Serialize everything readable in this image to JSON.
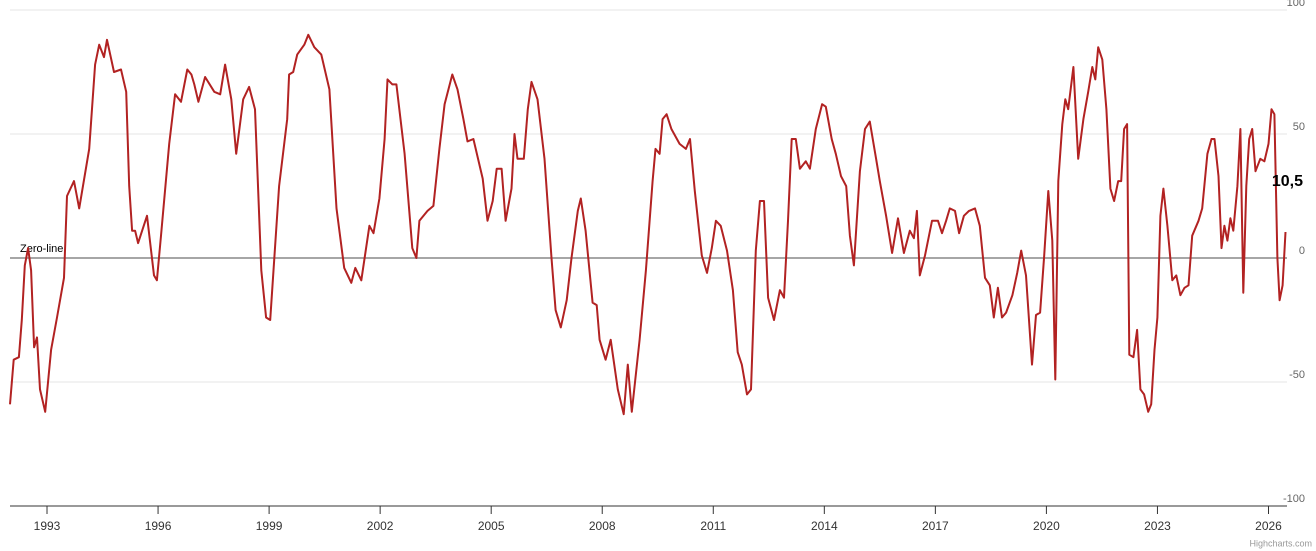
{
  "chart_data": {
    "type": "line",
    "color": "#b22222",
    "x": [
      1992.0,
      1992.1,
      1992.24,
      1992.32,
      1992.4,
      1992.49,
      1992.57,
      1992.65,
      1992.73,
      1992.81,
      1992.95,
      1993.11,
      1993.27,
      1993.46,
      1993.54,
      1993.73,
      1993.87,
      1994.14,
      1994.3,
      1994.41,
      1994.54,
      1994.62,
      1994.81,
      1995.0,
      1995.14,
      1995.22,
      1995.3,
      1995.38,
      1995.46,
      1995.7,
      1995.89,
      1995.97,
      1996.08,
      1996.3,
      1996.46,
      1996.62,
      1996.79,
      1996.9,
      1996.98,
      1997.09,
      1997.27,
      1997.52,
      1997.68,
      1997.81,
      1997.98,
      1998.11,
      1998.3,
      1998.46,
      1998.62,
      1998.79,
      1998.92,
      1999.03,
      1999.27,
      1999.49,
      1999.54,
      1999.65,
      1999.76,
      1999.95,
      2000.06,
      2000.22,
      2000.41,
      2000.63,
      2000.82,
      2001.03,
      2001.22,
      2001.33,
      2001.49,
      2001.71,
      2001.82,
      2001.98,
      2002.12,
      2002.2,
      2002.33,
      2002.44,
      2002.66,
      2002.87,
      2002.98,
      2003.06,
      2003.28,
      2003.44,
      2003.6,
      2003.74,
      2003.95,
      2004.09,
      2004.25,
      2004.36,
      2004.52,
      2004.77,
      2004.9,
      2005.04,
      2005.15,
      2005.28,
      2005.39,
      2005.55,
      2005.63,
      2005.71,
      2005.88,
      2005.99,
      2006.09,
      2006.25,
      2006.44,
      2006.63,
      2006.74,
      2006.88,
      2007.04,
      2007.17,
      2007.34,
      2007.42,
      2007.55,
      2007.74,
      2007.85,
      2007.93,
      2008.09,
      2008.23,
      2008.42,
      2008.58,
      2008.69,
      2008.8,
      2009.01,
      2009.18,
      2009.36,
      2009.44,
      2009.55,
      2009.63,
      2009.74,
      2009.87,
      2010.09,
      2010.26,
      2010.37,
      2010.5,
      2010.69,
      2010.83,
      2010.96,
      2011.07,
      2011.2,
      2011.37,
      2011.53,
      2011.66,
      2011.77,
      2011.91,
      2012.02,
      2012.15,
      2012.26,
      2012.37,
      2012.48,
      2012.64,
      2012.8,
      2012.91,
      2013.02,
      2013.12,
      2013.23,
      2013.34,
      2013.5,
      2013.61,
      2013.77,
      2013.94,
      2014.04,
      2014.2,
      2014.31,
      2014.45,
      2014.59,
      2014.69,
      2014.8,
      2014.96,
      2015.1,
      2015.23,
      2015.4,
      2015.5,
      2015.67,
      2015.83,
      2015.99,
      2016.15,
      2016.31,
      2016.42,
      2016.5,
      2016.58,
      2016.72,
      2016.91,
      2017.07,
      2017.18,
      2017.29,
      2017.39,
      2017.53,
      2017.64,
      2017.77,
      2017.91,
      2018.07,
      2018.2,
      2018.34,
      2018.47,
      2018.58,
      2018.69,
      2018.8,
      2018.91,
      2019.08,
      2019.21,
      2019.32,
      2019.45,
      2019.61,
      2019.72,
      2019.83,
      2019.94,
      2020.05,
      2020.16,
      2020.24,
      2020.32,
      2020.43,
      2020.51,
      2020.59,
      2020.73,
      2020.86,
      2021.0,
      2021.13,
      2021.24,
      2021.32,
      2021.4,
      2021.51,
      2021.62,
      2021.73,
      2021.83,
      2021.94,
      2022.02,
      2022.1,
      2022.18,
      2022.24,
      2022.35,
      2022.45,
      2022.54,
      2022.64,
      2022.75,
      2022.83,
      2022.92,
      2023.0,
      2023.08,
      2023.16,
      2023.27,
      2023.4,
      2023.51,
      2023.62,
      2023.73,
      2023.84,
      2023.94,
      2024.11,
      2024.21,
      2024.35,
      2024.46,
      2024.54,
      2024.65,
      2024.73,
      2024.81,
      2024.89,
      2024.97,
      2025.05,
      2025.16,
      2025.24,
      2025.32,
      2025.4,
      2025.48,
      2025.56,
      2025.65,
      2025.78,
      2025.89,
      2026.0,
      2026.08,
      2026.16,
      2026.24,
      2026.3,
      2026.38,
      2026.46
    ],
    "values": [
      -59,
      -41,
      -40,
      -25,
      -3,
      4,
      -5,
      -36,
      -32,
      -53,
      -62,
      -37,
      -24,
      -8,
      25,
      31,
      20,
      44,
      78,
      86,
      81,
      88,
      75,
      76,
      67,
      29,
      11,
      11,
      6,
      17,
      -7,
      -9,
      9,
      46,
      66,
      63,
      76,
      74,
      70,
      63,
      73,
      67,
      66,
      78,
      64,
      42,
      64,
      69,
      60,
      -5,
      -24,
      -25,
      29,
      56,
      74,
      75,
      82,
      86,
      90,
      85,
      82,
      68,
      20,
      -4,
      -10,
      -4,
      -9,
      13,
      10,
      24,
      48,
      72,
      70,
      70,
      42,
      4,
      0,
      15,
      19,
      21,
      44,
      62,
      74,
      68,
      56,
      47,
      48,
      32,
      15,
      23,
      36,
      36,
      15,
      28,
      50,
      40,
      40,
      60,
      71,
      64,
      40,
      0,
      -21,
      -28,
      -17,
      0,
      19,
      24,
      11,
      -18,
      -19,
      -33,
      -41,
      -33,
      -53,
      -63,
      -43,
      -62,
      -33,
      -5,
      31,
      44,
      42,
      56,
      58,
      52,
      46,
      44,
      48,
      27,
      1,
      -6,
      4,
      15,
      13,
      3,
      -13,
      -38,
      -43,
      -55,
      -53,
      3,
      23,
      23,
      -16,
      -25,
      -13,
      -16,
      15,
      48,
      48,
      36,
      39,
      36,
      52,
      62,
      61,
      48,
      42,
      33,
      29,
      9,
      -3,
      35,
      52,
      55,
      40,
      31,
      17,
      2,
      16,
      2,
      11,
      8,
      19,
      -7,
      1,
      15,
      15,
      10,
      15,
      20,
      19,
      10,
      17,
      19,
      20,
      13,
      -8,
      -11,
      -24,
      -12,
      -24,
      -22,
      -15,
      -6,
      3,
      -7,
      -43,
      -23,
      -22,
      1,
      27,
      7,
      -49,
      31,
      54,
      64,
      60,
      77,
      40,
      56,
      67,
      77,
      72,
      85,
      80,
      60,
      28,
      23,
      31,
      31,
      52,
      54,
      -39,
      -40,
      -29,
      -53,
      -55,
      -62,
      -59,
      -37,
      -24,
      17,
      28,
      13,
      -9,
      -7,
      -15,
      -12,
      -11,
      9,
      15,
      20,
      42,
      48,
      48,
      33,
      4,
      13,
      7,
      16,
      11,
      29,
      52,
      -14,
      29,
      48,
      52,
      35,
      40,
      39,
      46,
      60,
      58,
      0,
      -17,
      -11,
      10.5
    ],
    "last_label": "10,5",
    "zero_line": {
      "value": 0,
      "label": "Zero-line"
    },
    "xlim": [
      1992,
      2026.5
    ],
    "xticks": [
      1993,
      1996,
      1999,
      2002,
      2005,
      2008,
      2011,
      2014,
      2017,
      2020,
      2023,
      2026
    ],
    "ylim": [
      -100,
      100
    ],
    "yticks": [
      -100,
      -50,
      0,
      50,
      100
    ],
    "grid": true,
    "credits": "Highcharts.com"
  }
}
